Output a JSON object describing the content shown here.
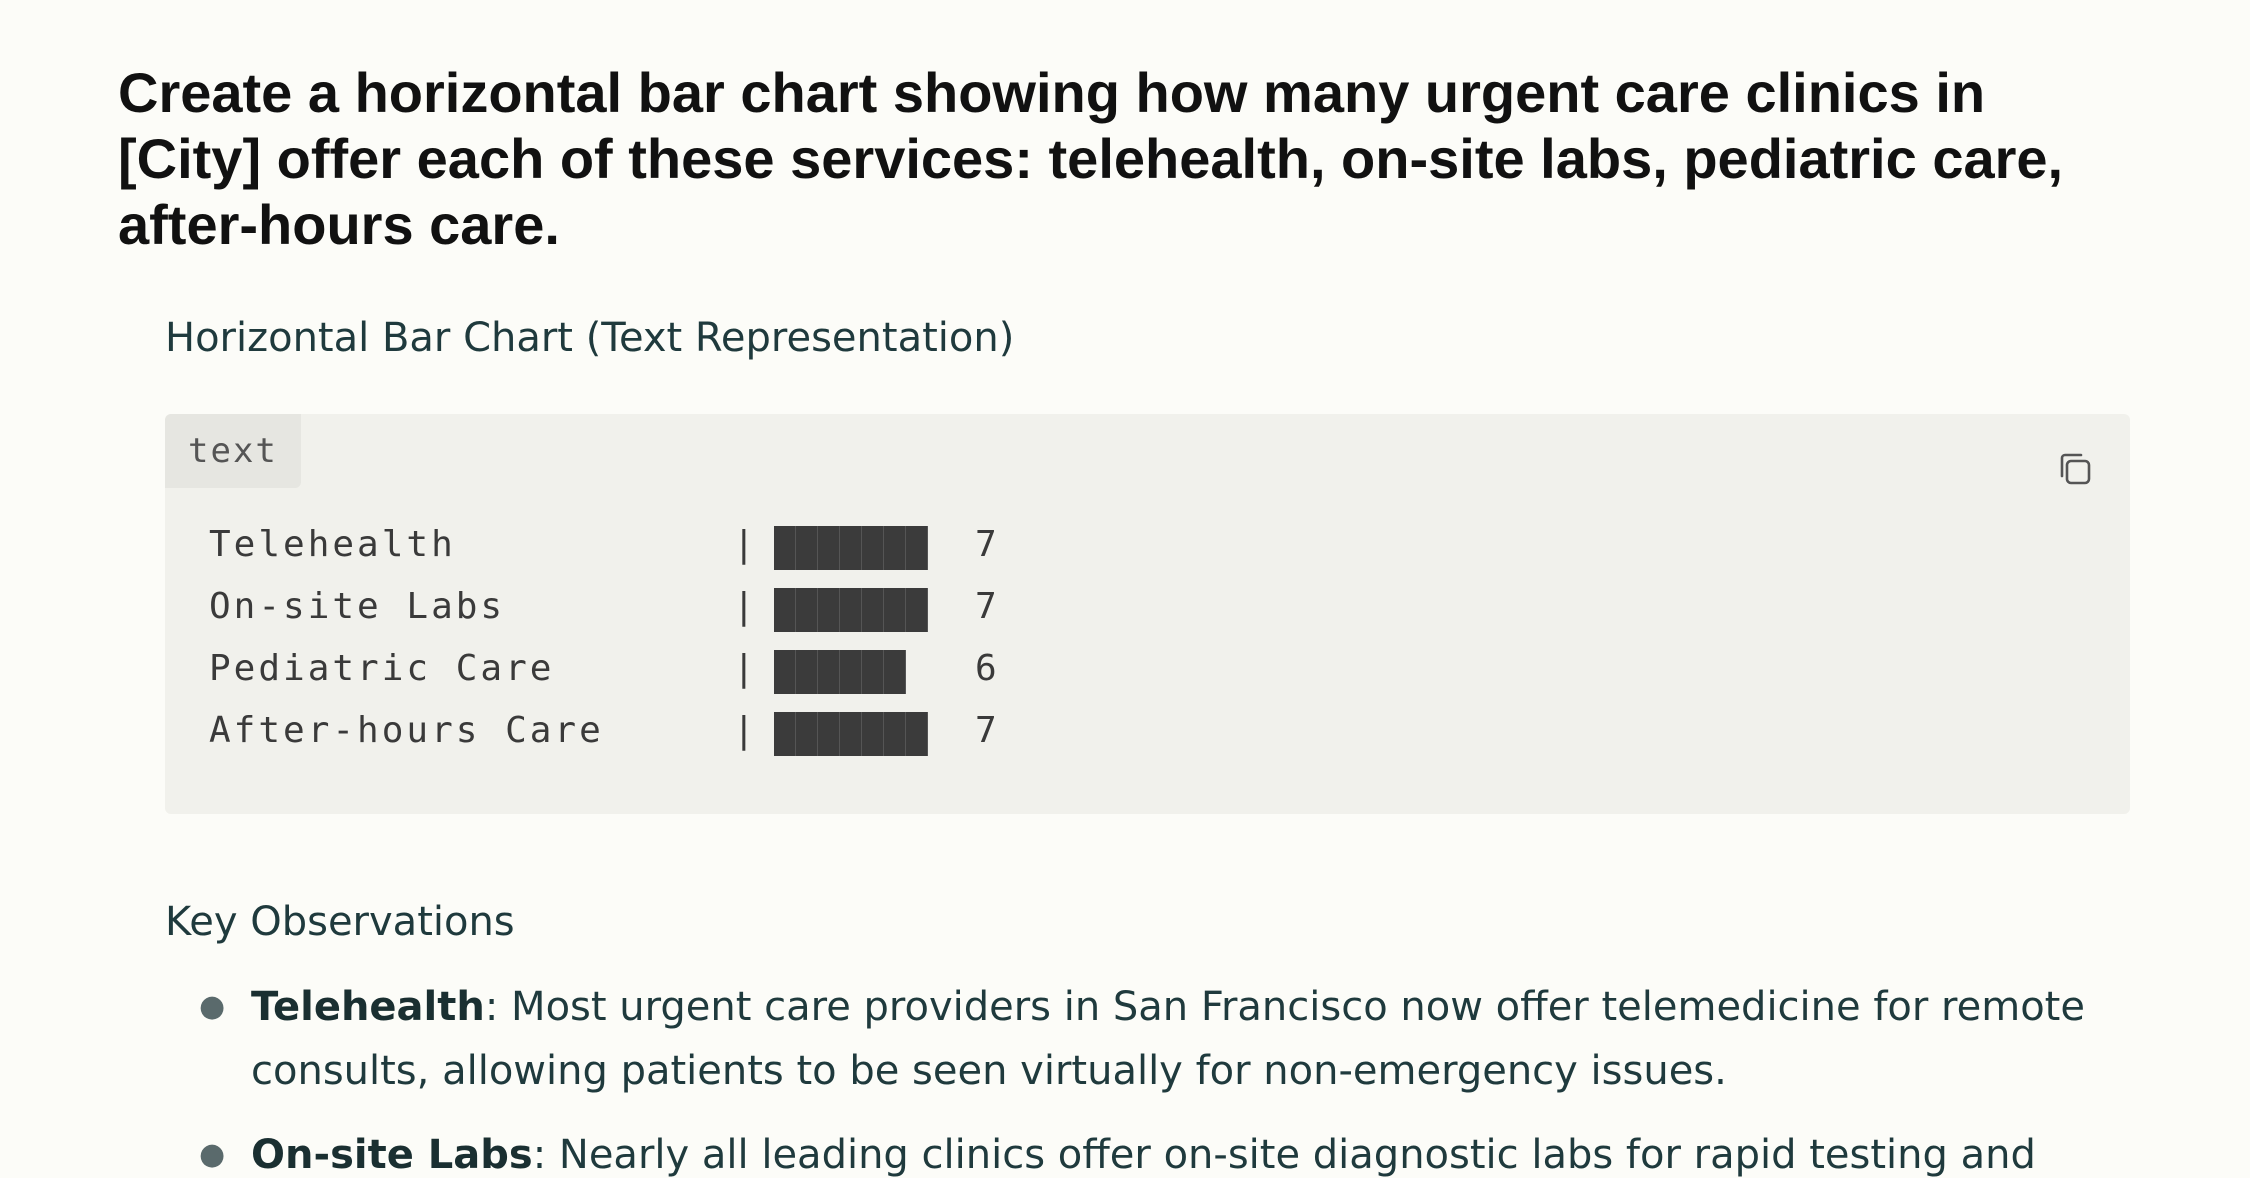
{
  "prompt": {
    "text": "Create a horizontal bar chart showing how many urgent care clinics in [City] offer each of these services: telehealth, on-site labs, pediatric care, after-hours care."
  },
  "answer": {
    "heading": "Horizontal Bar Chart (Text Representation)",
    "code_block": {
      "language": "text",
      "copy_icon": "copy-icon",
      "separator": "|",
      "rows": [
        {
          "label": "Telehealth",
          "value": "7",
          "blocks": 7
        },
        {
          "label": "On-site Labs",
          "value": "7",
          "blocks": 7
        },
        {
          "label": "Pediatric Care",
          "value": "6",
          "blocks": 6
        },
        {
          "label": "After-hours Care",
          "value": "7",
          "blocks": 7
        }
      ]
    },
    "key_observations": {
      "heading": "Key Observations",
      "items": [
        {
          "term": "Telehealth",
          "text": ": Most urgent care providers in San Francisco now offer telemedicine for remote consults, allowing patients to be seen virtually for non-emergency issues."
        },
        {
          "term": "On-site Labs",
          "text": ": Nearly all leading clinics offer on-site diagnostic labs for rapid testing and"
        }
      ]
    }
  },
  "chart_data": {
    "type": "bar",
    "orientation": "horizontal",
    "title": "Horizontal Bar Chart (Text Representation)",
    "categories": [
      "Telehealth",
      "On-site Labs",
      "Pediatric Care",
      "After-hours Care"
    ],
    "values": [
      7,
      7,
      6,
      7
    ],
    "xlabel": "",
    "ylabel": ""
  }
}
